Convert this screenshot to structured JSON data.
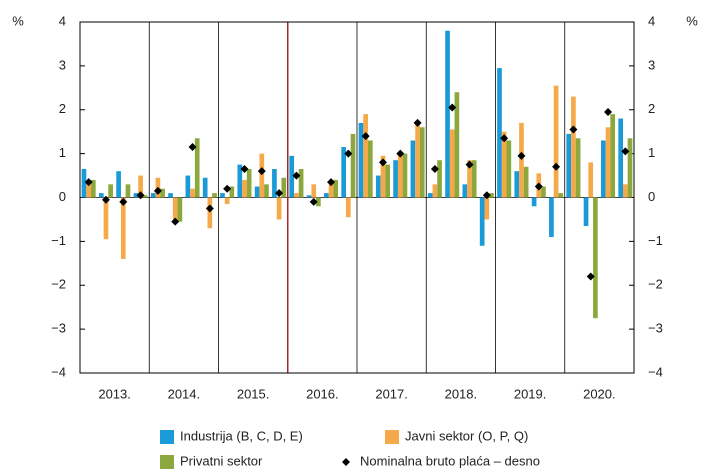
{
  "chart_data": {
    "type": "bar",
    "y_unit": "%",
    "y2_unit": "%",
    "categories": [
      null,
      null,
      null,
      null,
      null,
      null,
      null,
      null,
      null,
      null,
      null,
      null,
      null,
      null,
      null,
      null,
      null,
      null,
      null,
      null,
      null,
      null,
      null,
      null,
      null,
      null,
      null,
      null,
      null,
      null,
      null,
      null
    ],
    "year_labels": [
      "2013.",
      "2014.",
      "2015.",
      "2016.",
      "2017.",
      "2018.",
      "2019.",
      "2020."
    ],
    "divider": {
      "after": "2015.",
      "color": "#a8282e"
    },
    "ylim": [
      -4,
      4
    ],
    "yticks": [
      {
        "value": -4,
        "label": "−4"
      },
      {
        "value": -3,
        "label": "−3"
      },
      {
        "value": -2,
        "label": "−2"
      },
      {
        "value": -1,
        "label": "−1"
      },
      0,
      1,
      2,
      3,
      4
    ],
    "y2lim": [
      -4,
      4
    ],
    "y2ticks": [
      {
        "value": -4,
        "label": "−4"
      },
      {
        "value": -3,
        "label": "−3"
      },
      {
        "value": -2,
        "label": "−2"
      },
      {
        "value": -1,
        "label": "−1"
      },
      0,
      1,
      2,
      3,
      4
    ],
    "series": [
      {
        "name": "Industrija (B, C, D, E)",
        "color": "#1a9ad6",
        "values": [
          0.65,
          0.1,
          0.6,
          0.1,
          0.1,
          0.1,
          0.5,
          0.45,
          0.1,
          0.75,
          0.25,
          0.65,
          0.95,
          0.05,
          0.1,
          1.15,
          1.7,
          0.5,
          0.85,
          1.3,
          0.1,
          3.8,
          0.3,
          -1.1,
          2.95,
          0.6,
          -0.2,
          -0.9,
          1.45,
          -0.65,
          1.3,
          1.8
        ]
      },
      {
        "name": "Javni sektor (O, P, Q)",
        "color": "#f6a94a",
        "values": [
          0.3,
          -0.95,
          -1.4,
          0.5,
          0.45,
          -0.5,
          0.2,
          -0.7,
          -0.15,
          0.4,
          1.0,
          -0.5,
          0.1,
          0.3,
          0.35,
          -0.45,
          1.9,
          0.95,
          1.0,
          1.75,
          0.3,
          1.55,
          0.85,
          -0.5,
          1.5,
          1.7,
          0.55,
          2.55,
          2.3,
          0.8,
          1.6,
          0.3
        ]
      },
      {
        "name": "Privatni sektor",
        "color": "#8ca83c",
        "values": [
          0.4,
          0.3,
          0.3,
          0.05,
          0.2,
          -0.55,
          1.35,
          0.1,
          0.25,
          0.65,
          0.3,
          0.45,
          0.65,
          -0.2,
          0.4,
          1.45,
          1.3,
          0.75,
          1.0,
          1.6,
          0.85,
          2.4,
          0.85,
          0.1,
          1.3,
          0.7,
          0.25,
          0.1,
          1.35,
          -2.75,
          1.9,
          1.35
        ]
      },
      {
        "name": "Nominalna bruto plaća – desno",
        "color": "#000000",
        "axis": "y2",
        "values": [
          0.35,
          -0.05,
          -0.1,
          0.05,
          0.15,
          -0.55,
          1.15,
          -0.25,
          0.2,
          0.65,
          0.6,
          0.1,
          0.5,
          -0.1,
          0.35,
          1.0,
          1.4,
          0.8,
          1.0,
          1.7,
          0.65,
          2.05,
          0.75,
          0.05,
          1.35,
          0.95,
          0.25,
          0.7,
          1.55,
          -1.8,
          1.95,
          1.05
        ]
      }
    ]
  }
}
